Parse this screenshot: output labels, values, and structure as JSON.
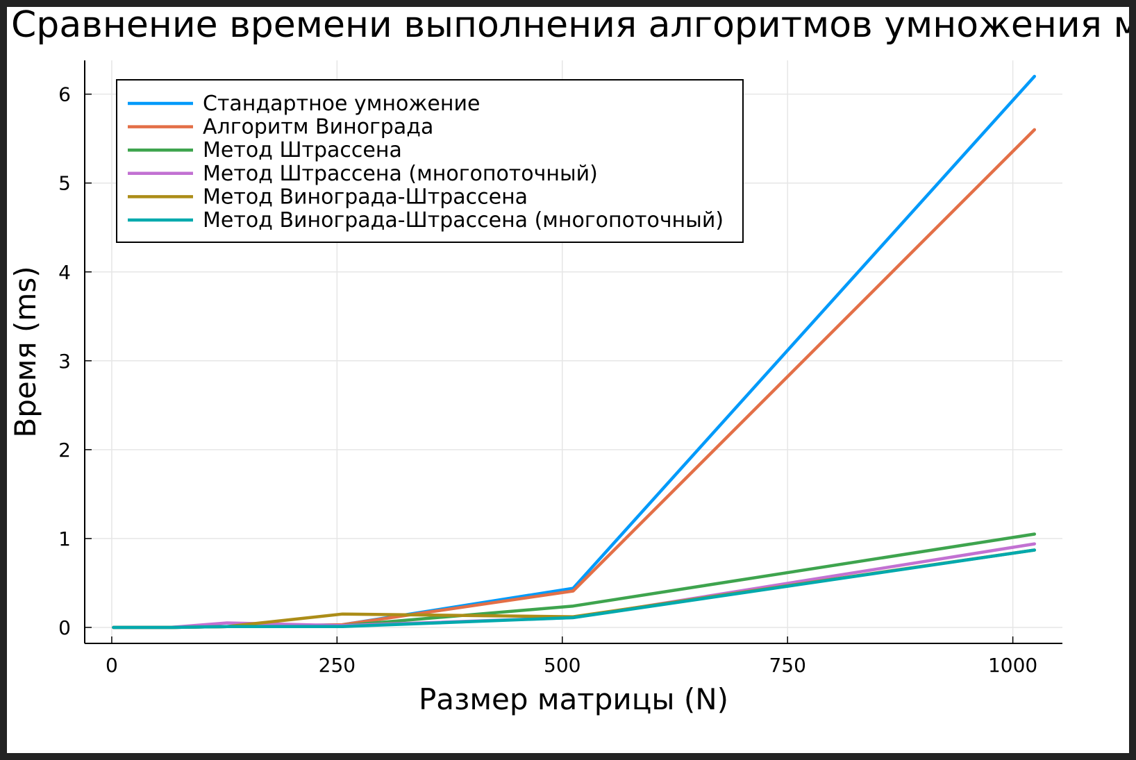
{
  "chart_data": {
    "type": "line",
    "title": "Сравнение времени выполнения алгоритмов умножения матриц",
    "xlabel": "Размер матрицы (N)",
    "ylabel": "Время (ms)",
    "xlim": [
      -30,
      1055
    ],
    "ylim": [
      -0.18,
      6.38
    ],
    "xticks": [
      0,
      250,
      500,
      750,
      1000
    ],
    "yticks": [
      0,
      1,
      2,
      3,
      4,
      5,
      6
    ],
    "grid": true,
    "legend_position": "top-left",
    "x": [
      2,
      64,
      128,
      256,
      512,
      1024
    ],
    "series": [
      {
        "name": "Стандартное умножение",
        "color": "#009AFA",
        "values": [
          0,
          0,
          0.01,
          0.03,
          0.44,
          6.2
        ]
      },
      {
        "name": "Алгоритм Винограда",
        "color": "#E36F47",
        "values": [
          0,
          0,
          0.01,
          0.03,
          0.41,
          5.6
        ]
      },
      {
        "name": "Метод Штрассена",
        "color": "#3EA44E",
        "values": [
          0,
          0,
          0.01,
          0.02,
          0.24,
          1.05
        ]
      },
      {
        "name": "Метод Штрассена (многопоточный)",
        "color": "#C271D2",
        "values": [
          0,
          0,
          0.05,
          0.02,
          0.11,
          0.94
        ]
      },
      {
        "name": "Метод Винограда-Штрассена",
        "color": "#AC8D18",
        "values": [
          0,
          0,
          0.01,
          0.15,
          0.12,
          0.87
        ]
      },
      {
        "name": "Метод Винограда-Штрассена (многопоточный)",
        "color": "#00A9AD",
        "values": [
          0,
          0,
          0.01,
          0.01,
          0.11,
          0.87
        ]
      }
    ]
  }
}
